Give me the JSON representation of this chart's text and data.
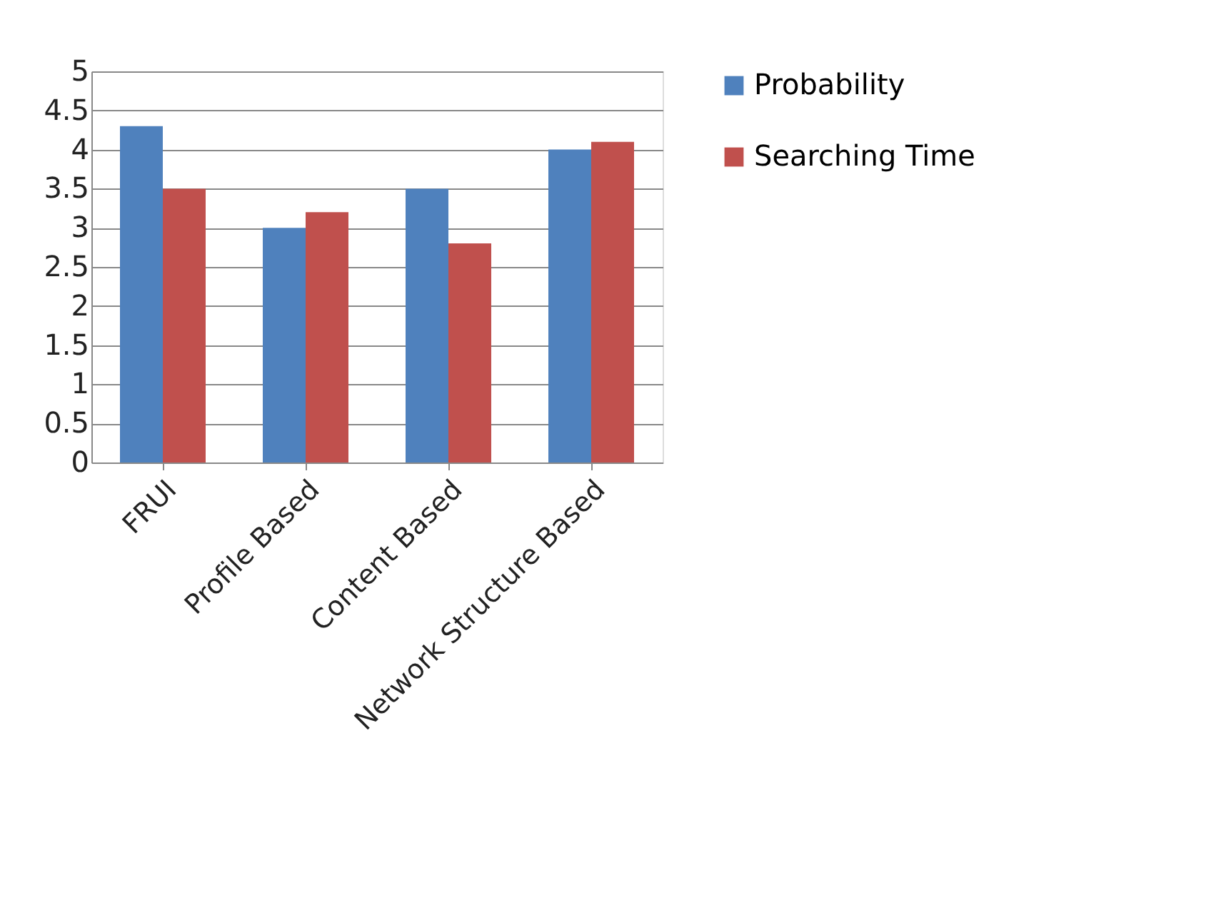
{
  "chart_data": {
    "type": "bar",
    "categories": [
      "FRUI",
      "Profile Based",
      "Content Based",
      "Network Structure Based"
    ],
    "series": [
      {
        "name": "Probability",
        "color": "#4f81bd",
        "values": [
          4.3,
          3.0,
          3.5,
          4.0
        ]
      },
      {
        "name": "Searching Time",
        "color": "#c0504d",
        "values": [
          3.5,
          3.2,
          2.8,
          4.1
        ]
      }
    ],
    "ylim": [
      0,
      5
    ],
    "yticks": [
      0,
      0.5,
      1,
      1.5,
      2,
      2.5,
      3,
      3.5,
      4,
      4.5,
      5
    ],
    "grid": "y",
    "legend": "right"
  }
}
